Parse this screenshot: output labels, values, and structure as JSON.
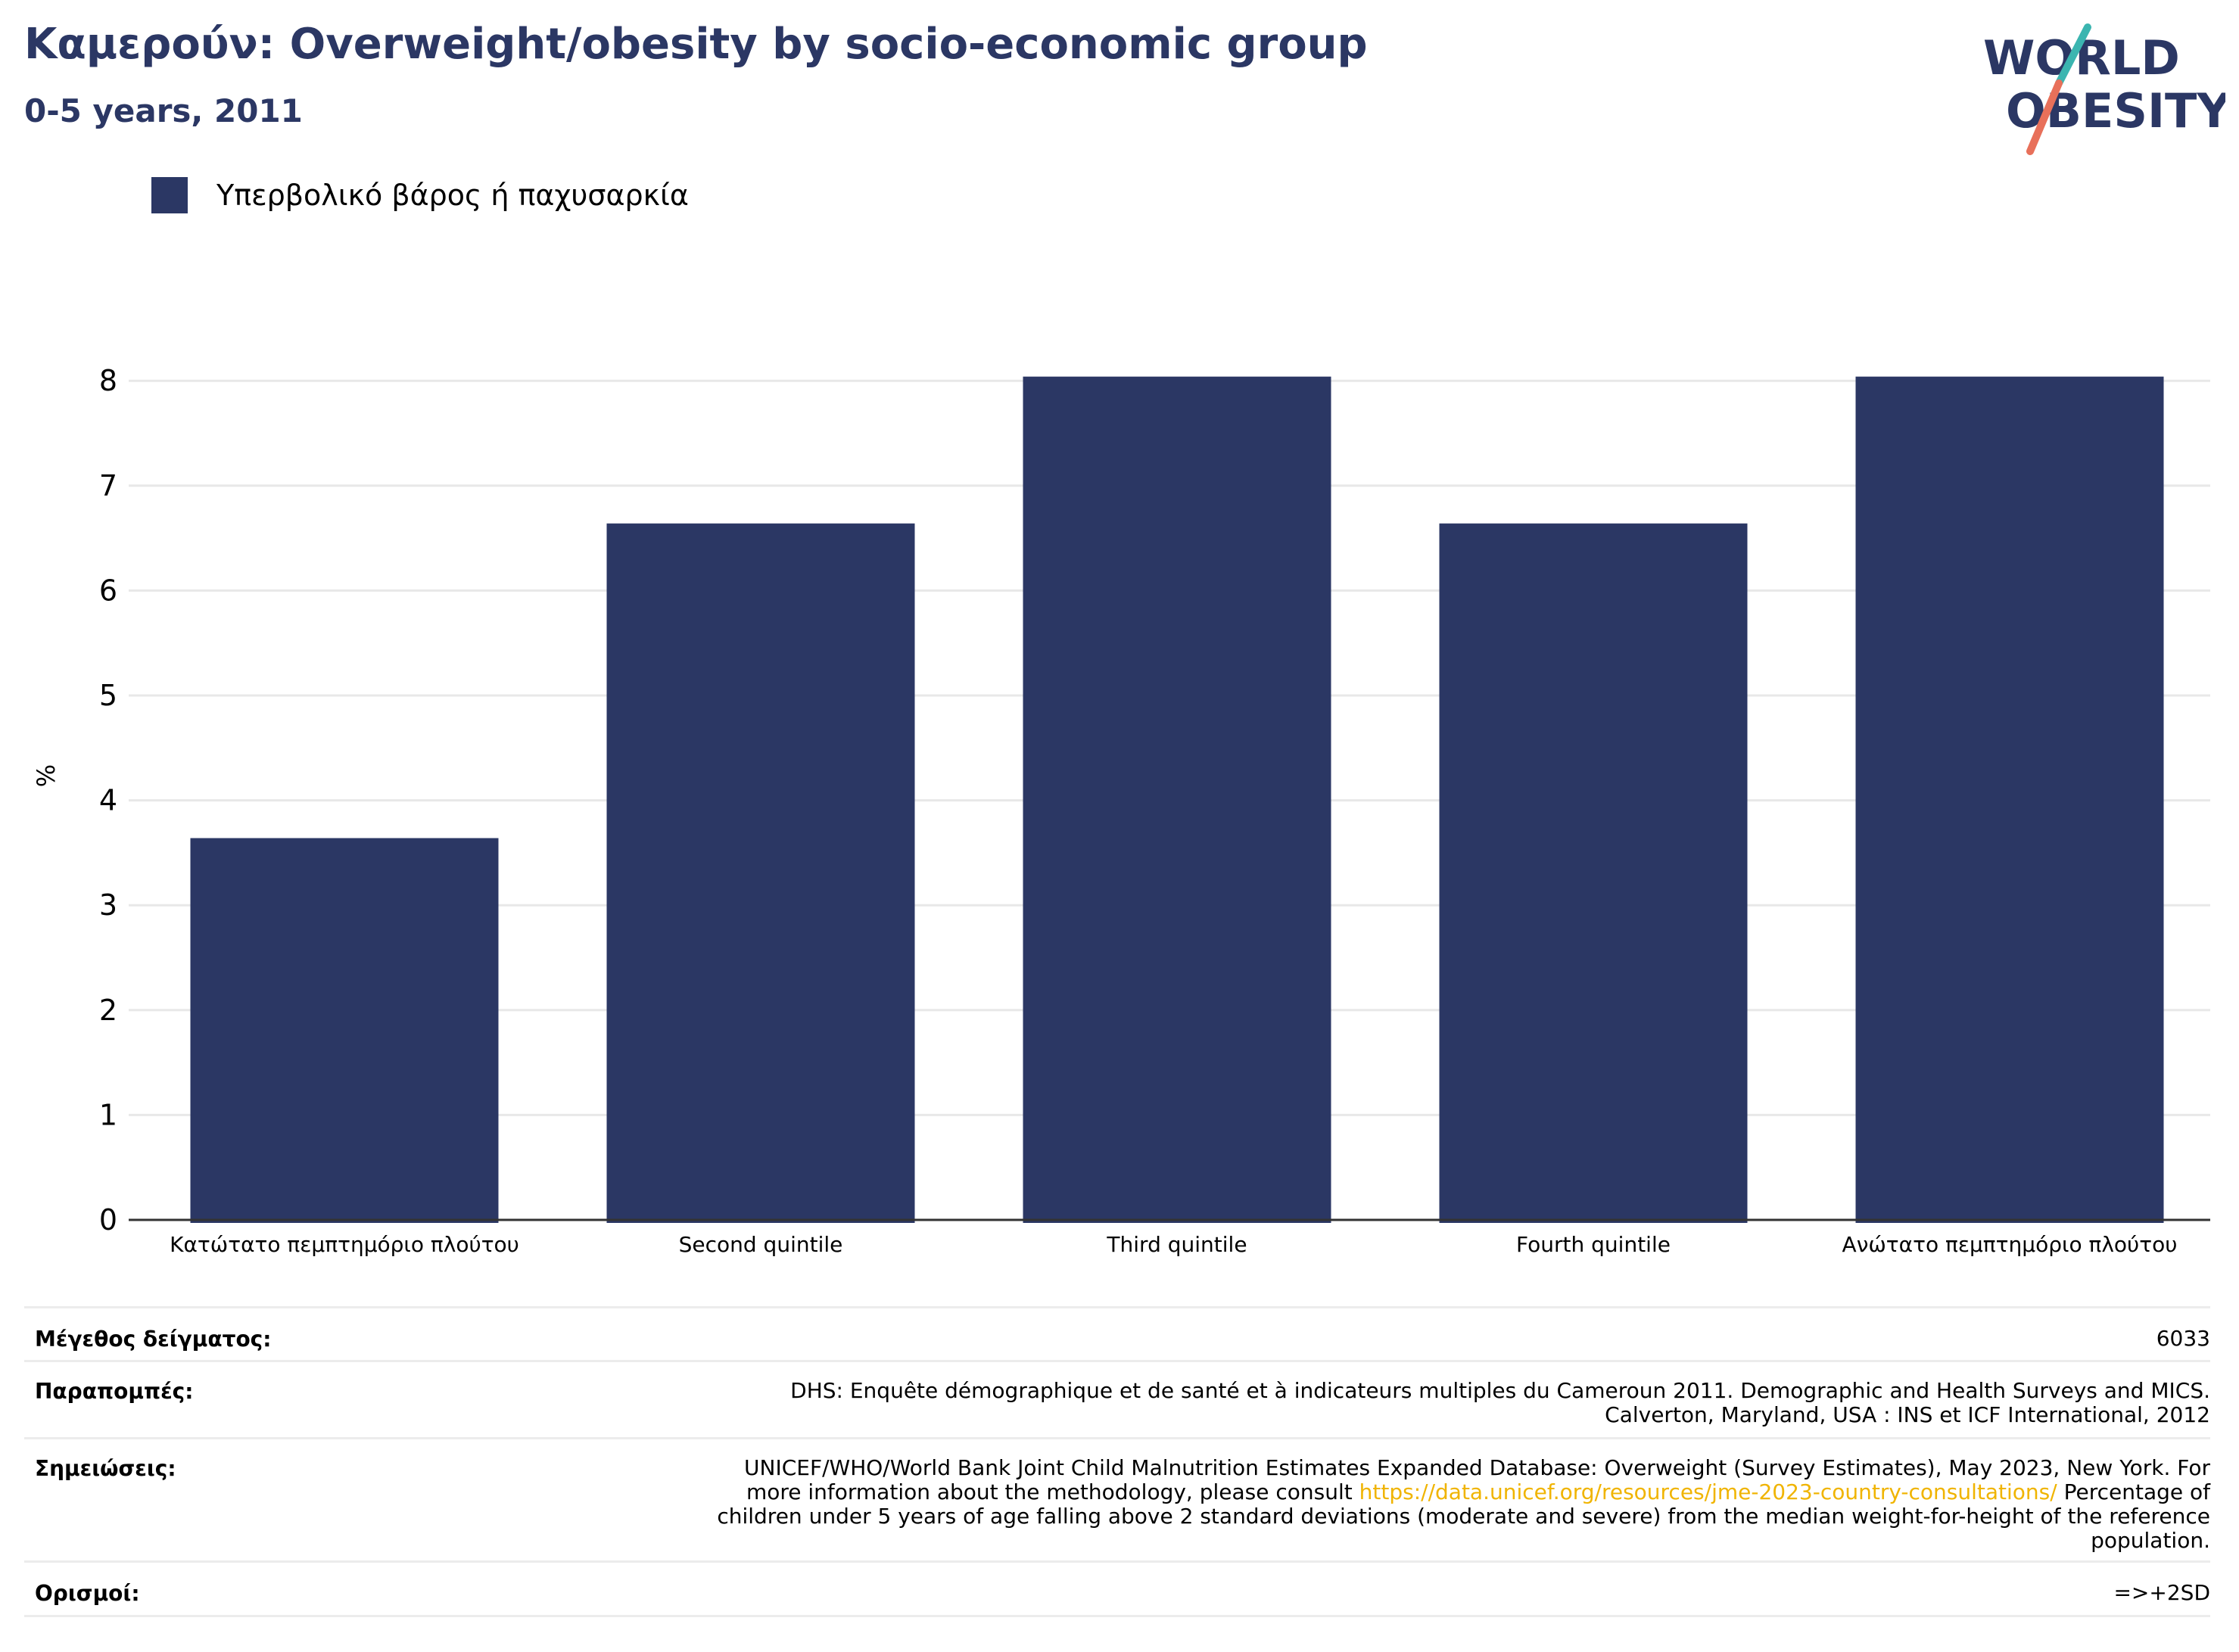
{
  "header": {
    "title": "Καμερούν: Overweight/obesity by socio-economic group",
    "subtitle": "0-5 years, 2011"
  },
  "logo": {
    "line1": "WORLD",
    "line2": "OBESITY"
  },
  "colors": {
    "bar": "#2b3764",
    "title": "#2b3764",
    "link": "#f0b400",
    "logo_slash_top": "#3bb5b0",
    "logo_slash_bottom": "#e8705a"
  },
  "chart_data": {
    "type": "bar",
    "categories": [
      "Κατώτατο πεμπτημόριο πλούτου",
      "Second quintile",
      "Third quintile",
      "Fourth quintile",
      "Ανώτατο πεμπτημόριο πλούτου"
    ],
    "series": [
      {
        "name": "Υπερβολικό βάρος ή παχυσαρκία",
        "values": [
          3.64,
          6.64,
          8.04,
          6.64,
          8.04
        ]
      }
    ],
    "ylabel": "%",
    "xlabel": "",
    "ylim": [
      0,
      8.6
    ],
    "yticks": [
      0,
      1,
      2,
      3,
      4,
      5,
      6,
      7,
      8
    ],
    "grid": true,
    "legend": "top-left"
  },
  "meta": {
    "sample_label": "Μέγεθος δείγματος:",
    "sample_value": "6033",
    "refs_label": "Παραπομπές:",
    "refs_line1": "DHS: Enquête démographique et de santé et à indicateurs multiples du Cameroun 2011. Demographic and Health Surveys and MICS.",
    "refs_line2": "Calverton, Maryland, USA : INS et ICF International, 2012",
    "notes_label": "Σημειώσεις:",
    "notes_line1": "UNICEF/WHO/World Bank Joint Child Malnutrition Estimates Expanded Database: Overweight (Survey Estimates), May 2023, New York. For",
    "notes_line2_pre": "more information about the methodology, please consult ",
    "notes_line2_link": "https://data.unicef.org/resources/jme-2023-country-consultations/",
    "notes_line2_post": " Percentage of",
    "notes_line3": "children under 5 years of age falling above 2 standard deviations (moderate and severe) from the median weight-for-height of the reference",
    "notes_line4": "population.",
    "defs_label": "Ορισμοί:",
    "defs_value": "=>+2SD"
  }
}
